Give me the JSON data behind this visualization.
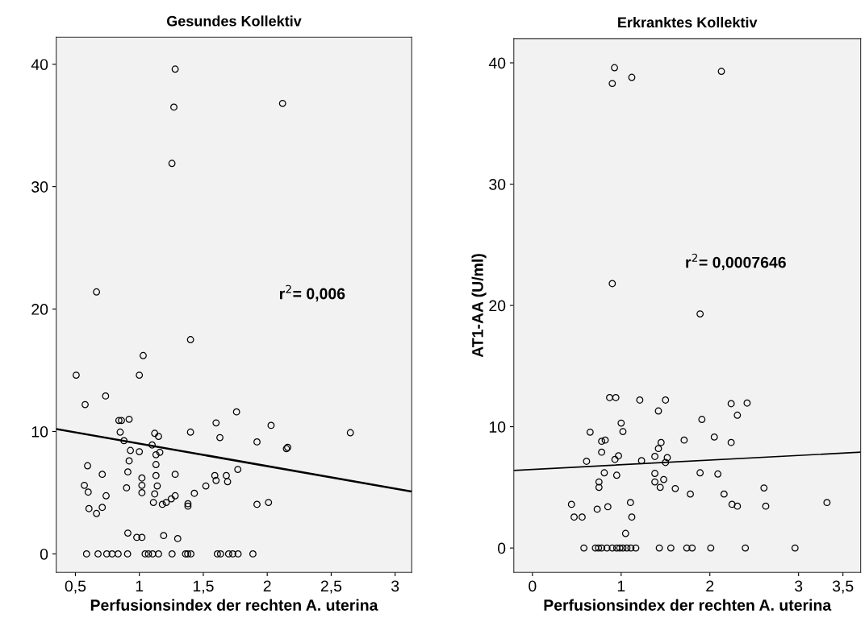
{
  "chart_data": [
    {
      "type": "scatter",
      "title": "Gesundes Kollektiv",
      "xlabel": "Perfusionsindex der rechten A. uterina",
      "xlim": [
        0.35,
        3.13
      ],
      "ylim": [
        -1.5,
        42.2
      ],
      "xticks": [
        {
          "value": 0.5,
          "label": "0,5"
        },
        1,
        {
          "value": 1.5,
          "label": "1,5"
        },
        2,
        {
          "value": 2.5,
          "label": "2,5"
        },
        3
      ],
      "yticks": [
        0,
        10,
        20,
        30,
        40
      ],
      "grid": false,
      "marker": "circle",
      "annotations": [
        "r$^{2}$= 0,006"
      ],
      "series": [
        {
          "color": "#000000",
          "x": [
            0.665,
            1.4,
            1.03,
            0.506,
            1.0,
            0.736,
            0.576,
            1.76,
            0.84,
            0.86,
            0.92,
            1.6,
            2.03,
            0.85,
            1.12,
            1.15,
            1.4,
            1.63,
            0.88,
            1.92,
            1.1,
            0.93,
            1.0,
            1.13,
            1.16,
            2.15,
            2.16,
            0.92,
            1.13,
            0.595,
            1.77,
            0.91,
            0.71,
            1.28,
            1.13,
            1.59,
            1.6,
            1.68,
            1.69,
            1.02,
            0.57,
            0.6,
            0.9,
            1.02,
            1.02,
            1.14,
            1.12,
            1.52,
            1.43,
            0.74,
            1.28,
            1.25,
            1.21,
            1.18,
            1.11,
            1.38,
            1.38,
            1.92,
            2.01,
            0.606,
            0.71,
            0.665,
            0.91,
            0.98,
            1.02,
            1.19,
            1.3,
            0.587,
            0.677,
            0.745,
            0.787,
            0.834,
            0.908,
            1.045,
            1.071,
            1.104,
            1.15,
            1.256,
            1.361,
            1.378,
            1.403,
            1.61,
            1.635,
            1.698,
            1.73,
            1.772,
            1.888,
            2.12,
            2.65,
            1.28,
            1.27,
            1.255
          ],
          "values": [
            21.4,
            17.5,
            16.2,
            14.6,
            14.6,
            12.9,
            12.2,
            11.6,
            10.9,
            10.9,
            11.0,
            10.7,
            10.5,
            9.95,
            9.85,
            9.6,
            9.95,
            9.5,
            9.25,
            9.15,
            8.9,
            8.45,
            8.35,
            8.1,
            8.3,
            8.6,
            8.7,
            7.6,
            7.3,
            7.2,
            6.9,
            6.7,
            6.5,
            6.5,
            6.4,
            6.4,
            6.0,
            6.4,
            5.9,
            6.2,
            5.6,
            5.05,
            5.4,
            5.6,
            5.0,
            5.55,
            4.9,
            5.55,
            4.95,
            4.75,
            4.75,
            4.5,
            4.2,
            4.05,
            4.2,
            4.1,
            3.9,
            4.05,
            4.2,
            3.7,
            3.8,
            3.3,
            1.7,
            1.35,
            1.35,
            1.5,
            1.25,
            0,
            0,
            0,
            0,
            0,
            0,
            0,
            0,
            0,
            0,
            0,
            0,
            0,
            0,
            0,
            0,
            0,
            0,
            0,
            0,
            36.8,
            9.9,
            39.6,
            36.5,
            31.9
          ]
        },
        {
          "type": "line",
          "color": "#000000",
          "marker": "none",
          "x": [
            0.35,
            3.13
          ],
          "values": [
            10.2,
            5.1
          ]
        }
      ]
    },
    {
      "type": "scatter",
      "title": "Erkranktes Kollektiv",
      "xlabel": "Perfusionsindex der rechten A. uterina",
      "ylabel": "AT1-AA (U/ml)",
      "xlim": [
        -0.21,
        3.7
      ],
      "ylim": [
        -2,
        42
      ],
      "xticks": [
        0,
        1,
        2,
        3,
        {
          "value": 3.5,
          "label": "3,5"
        }
      ],
      "yticks": [
        0,
        10,
        20,
        30,
        40
      ],
      "grid": false,
      "marker": "circle",
      "annotations": [
        "r$^{2}$= 0,0007646"
      ],
      "series": [
        {
          "color": "#000000",
          "x": [
            0.9,
            0.87,
            0.94,
            1.21,
            1.5,
            1.42,
            1.0,
            1.02,
            0.65,
            0.78,
            0.82,
            0.78,
            1.45,
            1.42,
            1.38,
            0.97,
            0.93,
            1.23,
            1.52,
            1.5,
            0.61,
            0.81,
            0.95,
            0.75,
            0.75,
            1.38,
            1.38,
            1.44,
            1.48,
            0.44,
            0.47,
            0.56,
            0.73,
            0.85,
            1.105,
            1.12,
            1.05,
            0.58,
            0.71,
            0.745,
            0.78,
            0.84,
            0.9,
            0.95,
            0.985,
            1.02,
            1.065,
            1.11,
            1.165,
            1.43,
            1.89,
            2.24,
            2.31,
            2.42,
            1.91,
            1.71,
            2.05,
            2.24,
            1.89,
            2.09,
            1.61,
            1.78,
            2.16,
            2.61,
            2.63,
            2.25,
            2.31,
            3.32,
            1.56,
            1.74,
            1.8,
            2.01,
            2.4,
            2.96,
            0.925,
            0.9,
            1.12,
            2.13
          ],
          "values": [
            21.8,
            12.4,
            12.4,
            12.2,
            12.2,
            11.3,
            10.3,
            9.6,
            9.55,
            8.8,
            8.9,
            7.9,
            8.7,
            8.2,
            7.55,
            7.6,
            7.3,
            7.2,
            7.45,
            7.05,
            7.15,
            6.2,
            6.0,
            5.45,
            5.0,
            6.15,
            5.45,
            5.0,
            5.65,
            3.6,
            2.55,
            2.55,
            3.2,
            3.4,
            3.75,
            2.55,
            1.2,
            0,
            0,
            0,
            0,
            0,
            0,
            0,
            0,
            0,
            0,
            0,
            0,
            0,
            19.3,
            11.9,
            10.95,
            11.95,
            10.6,
            8.9,
            9.15,
            8.7,
            6.2,
            6.1,
            4.9,
            4.45,
            4.45,
            4.95,
            3.45,
            3.6,
            3.45,
            3.75,
            0,
            0,
            0,
            0,
            0,
            0,
            39.6,
            38.3,
            38.8,
            39.3
          ]
        },
        {
          "type": "line",
          "color": "#000000",
          "marker": "none",
          "x": [
            -0.21,
            3.7
          ],
          "values": [
            6.4,
            7.9
          ]
        }
      ]
    }
  ]
}
